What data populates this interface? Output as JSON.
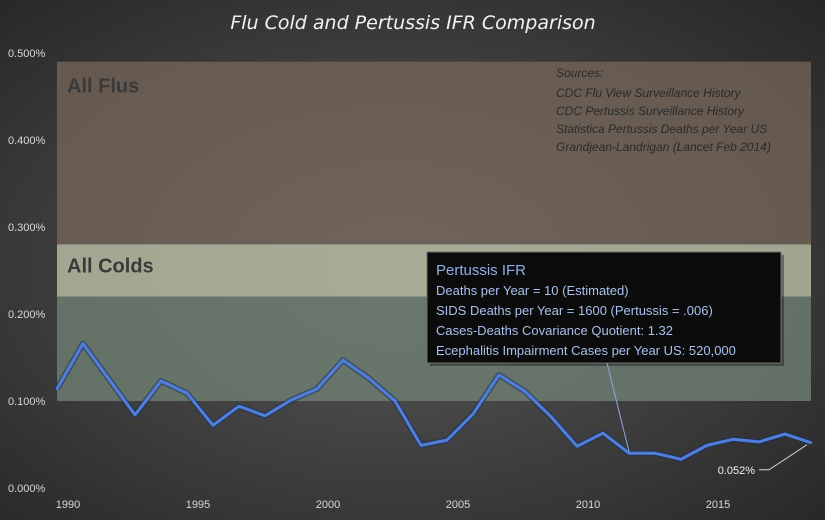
{
  "chart_data": {
    "type": "line",
    "title": "Flu Cold and Pertussis IFR Comparison",
    "xlabel": "",
    "ylabel": "",
    "xlim": [
      1990,
      2019
    ],
    "ylim": [
      0,
      0.5
    ],
    "x_ticks": [
      "1990",
      "1995",
      "2000",
      "2005",
      "2010",
      "2015"
    ],
    "y_ticks": [
      "0.000%",
      "0.100%",
      "0.200%",
      "0.300%",
      "0.400%",
      "0.500%"
    ],
    "grid": false,
    "series": [
      {
        "name": "Pertussis IFR",
        "x": [
          1990,
          1991,
          1992,
          1993,
          1994,
          1995,
          1996,
          1997,
          1998,
          1999,
          2000,
          2001,
          2002,
          2003,
          2004,
          2005,
          2006,
          2007,
          2008,
          2009,
          2010,
          2011,
          2012,
          2013,
          2014,
          2015,
          2016,
          2017,
          2018,
          2019
        ],
        "values": [
          0.114,
          0.166,
          0.125,
          0.084,
          0.123,
          0.109,
          0.072,
          0.094,
          0.083,
          0.101,
          0.114,
          0.147,
          0.126,
          0.1,
          0.049,
          0.055,
          0.085,
          0.13,
          0.111,
          0.082,
          0.048,
          0.063,
          0.04,
          0.04,
          0.033,
          0.049,
          0.056,
          0.053,
          0.062,
          0.052
        ],
        "color": "#4f7fd9"
      }
    ],
    "bands": [
      {
        "label": "All Flus",
        "from": 0.28,
        "to": 0.49,
        "color": "#7a6a5c"
      },
      {
        "label": "All Colds",
        "from": 0.1,
        "to": 0.28,
        "color": "#6f8073"
      }
    ],
    "point_label": {
      "text": "0.052%",
      "x": 2019,
      "y": 0.052
    },
    "sources": {
      "heading": "Sources:",
      "lines": [
        "CDC Flu View Surveillance History",
        "CDC Pertussis Surveillance History",
        "Statistica Pertussis Deaths per Year US",
        "Grandjean-Landrigan (Lancet Feb 2014)"
      ]
    },
    "info_box": {
      "title": "Pertussis IFR",
      "lines": [
        "Deaths per Year = 10 (Estimated)",
        "SIDS Deaths per Year = 1600 (Pertussis = .006)",
        "Cases-Deaths Covariance Quotient:  1.32",
        "Ecephalitis Impairment  Cases per Year US:  520,000"
      ],
      "pointer_year": 2012
    }
  }
}
